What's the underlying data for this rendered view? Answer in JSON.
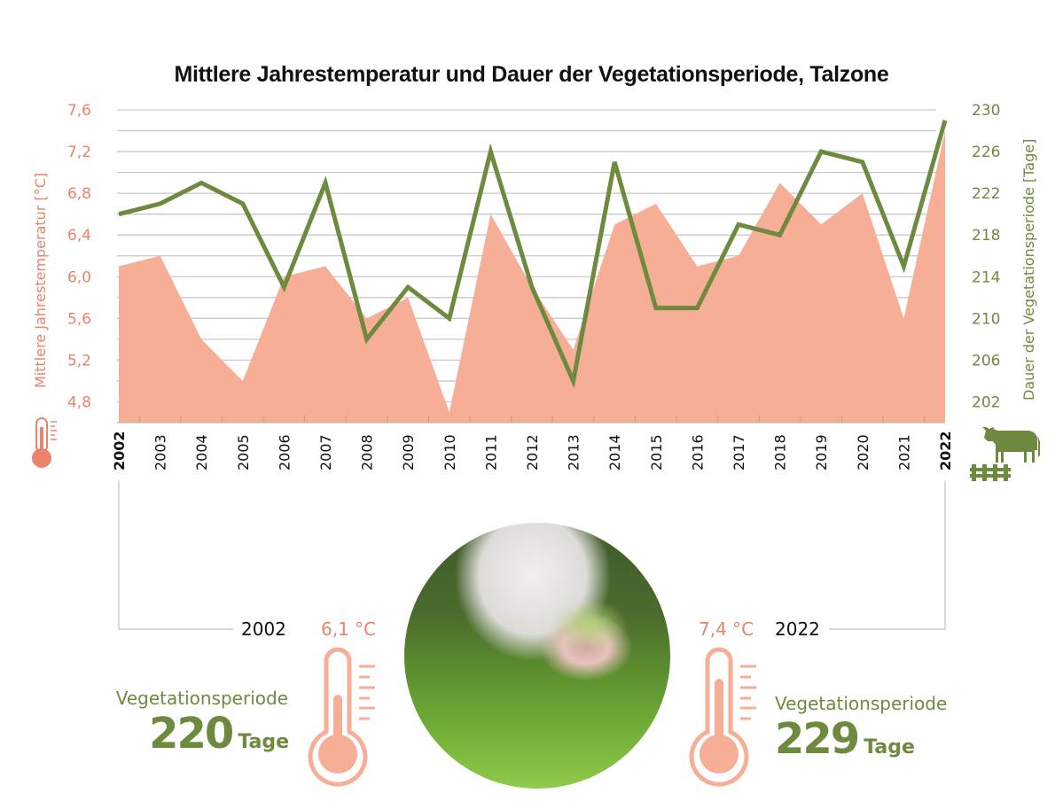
{
  "title": "Mittlere Jahrestemperatur und Dauer der Vegetationsperiode, Talzone",
  "chart_data": {
    "type": "area+line",
    "title": "Mittlere Jahrestemperatur und Dauer der Vegetationsperiode, Talzone",
    "categories": [
      "2002",
      "2003",
      "2004",
      "2005",
      "2006",
      "2007",
      "2008",
      "2009",
      "2010",
      "2011",
      "2012",
      "2013",
      "2014",
      "2015",
      "2016",
      "2017",
      "2018",
      "2019",
      "2020",
      "2021",
      "2022"
    ],
    "series": [
      {
        "name": "Mittlere Jahrestemperatur [°C]",
        "type": "area",
        "axis": "left",
        "color": "#f7ae97",
        "values": [
          6.1,
          6.2,
          5.4,
          5.0,
          6.0,
          6.1,
          5.6,
          5.8,
          4.7,
          6.6,
          5.9,
          5.3,
          6.5,
          6.7,
          6.1,
          6.2,
          6.9,
          6.5,
          6.8,
          5.6,
          7.4
        ]
      },
      {
        "name": "Dauer der Vegetationsperiode [Tage]",
        "type": "line",
        "axis": "right",
        "color": "#6e8a3e",
        "values": [
          220,
          221,
          223,
          221,
          213,
          223,
          208,
          213,
          210,
          226,
          213,
          204,
          225,
          211,
          211,
          219,
          218,
          226,
          225,
          215,
          229
        ]
      }
    ],
    "ylabel_left": "Mittlere Jahrestemperatur [°C]",
    "ylabel_right": "Dauer der Vegetationsperiode [Tage]",
    "ylim_left": [
      4.6,
      7.6
    ],
    "ylim_right": [
      200,
      230
    ],
    "yticks_left": [
      "7,6",
      "7,2",
      "6,8",
      "6,4",
      "6,0",
      "5,6",
      "5,2",
      "4,8"
    ],
    "yticks_right": [
      "230",
      "226",
      "222",
      "218",
      "214",
      "210",
      "206",
      "202"
    ],
    "highlighted_categories": [
      "2002",
      "2022"
    ],
    "grid": true,
    "legend": "none"
  },
  "summary": {
    "start": {
      "year": "2002",
      "temperature": "6,1 °C",
      "veg_label": "Vegetationsperiode",
      "days": "220",
      "days_unit": "Tage"
    },
    "end": {
      "year": "2022",
      "temperature": "7,4 °C",
      "veg_label": "Vegetationsperiode",
      "days": "229",
      "days_unit": "Tage"
    }
  },
  "colors": {
    "temperature": "#e9836b",
    "temperature_fill": "#f7ae97",
    "vegetation": "#6e8a3e",
    "grid": "#c8c8c8"
  }
}
